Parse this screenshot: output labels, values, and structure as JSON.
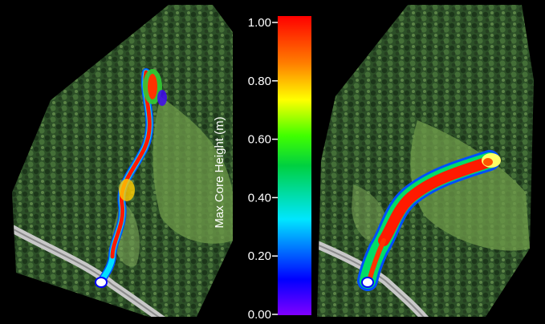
{
  "colorbar": {
    "label": "Max Core Height (m)",
    "ticks": [
      "1.00",
      "0.80",
      "0.60",
      "0.40",
      "0.20",
      "0.00"
    ],
    "range": [
      0.0,
      1.0
    ],
    "colormap": [
      "#7f00ff",
      "#0000ff",
      "#00ffff",
      "#00ff00",
      "#ffff00",
      "#ff0000"
    ]
  },
  "panels": [
    {
      "name": "left-simulation-map",
      "flow": "long channelized debris flow"
    },
    {
      "name": "right-simulation-map",
      "flow": "short debris flow"
    }
  ],
  "colors": {
    "background": "#000000",
    "forest_dark": "#1f3a1c",
    "forest_mid": "#3d6b32",
    "meadow": "#7aa356",
    "road": "#c8c8c8"
  }
}
